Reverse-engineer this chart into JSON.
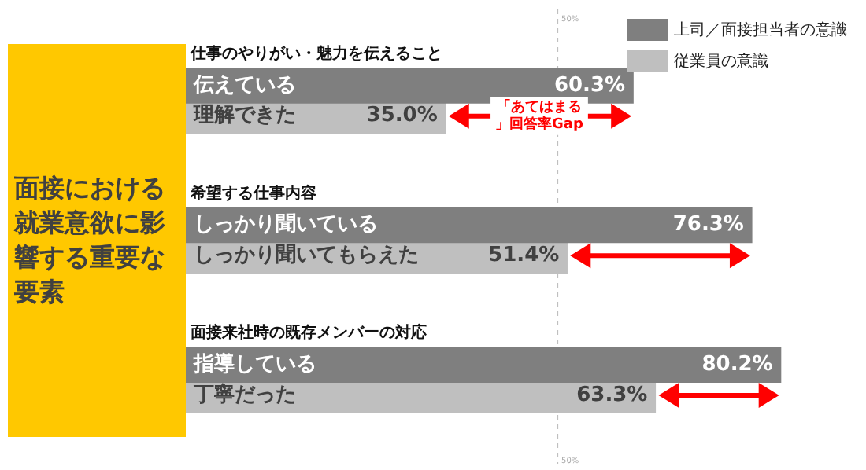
{
  "chart_data": {
    "type": "bar",
    "orientation": "horizontal",
    "title": "面接における就業意欲に影響する重要な要素",
    "categories": [
      "伝えている",
      "理解できた",
      "しっかり聞いている",
      "しっかり聞いてもらえた",
      "指導している",
      "丁寧だった"
    ],
    "series": [
      {
        "name": "上司／面接担当者の意識",
        "color": "#7f7f7f",
        "values": [
          60.3,
          null,
          76.3,
          null,
          80.2,
          null
        ],
        "value_labels": [
          "60.3%",
          null,
          "76.3%",
          null,
          "80.2%",
          null
        ]
      },
      {
        "name": "従業員の意識",
        "color": "#bfbfbf",
        "values": [
          null,
          35.0,
          null,
          51.4,
          null,
          63.3
        ],
        "value_labels": [
          null,
          "35.0%",
          null,
          "51.4%",
          null,
          "63.3%"
        ]
      }
    ],
    "tick_labels": "y",
    "legend": "top right",
    "ref_lines": [
      {
        "axis": "x",
        "value": 50,
        "label": "50%",
        "color": "#bfbfbf",
        "line_style": "dashed"
      }
    ],
    "annotations": [
      "仕事のやりがい・魅力を伝えること",
      "希望する仕事内容",
      "面接来社時の既存メンバーの対応",
      "「あてはまる」回答率Gap"
    ]
  }
}
